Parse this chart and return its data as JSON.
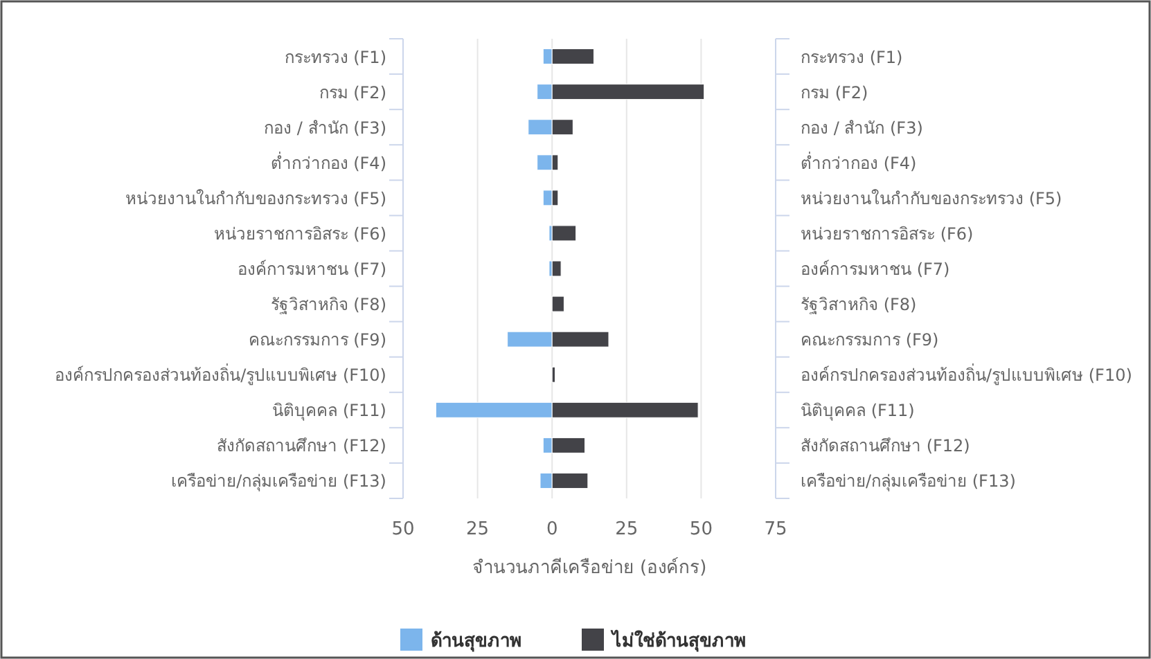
{
  "chart_data": {
    "type": "bar",
    "orientation": "horizontal",
    "stacked": true,
    "categories": [
      "กระทรวง (F1)",
      "กรม (F2)",
      "กอง / สำนัก (F3)",
      "ต่ำกว่ากอง (F4)",
      "หน่วยงานในกำกับของกระทรวง (F5)",
      "หน่วยราชการอิสระ (F6)",
      "องค์การมหาชน (F7)",
      "รัฐวิสาหกิจ (F8)",
      "คณะกรรมการ (F9)",
      "องค์กรปกครองส่วนท้องถิ่น/รูปแบบพิเศษ (F10)",
      "นิติบุคคล (F11)",
      "สังกัดสถานศึกษา (F12)",
      "เครือข่าย/กลุ่มเครือข่าย (F13)"
    ],
    "series": [
      {
        "name": "ด้านสุขภาพ",
        "color": "#7cb5ec",
        "values": [
          -3,
          -5,
          -8,
          -5,
          -3,
          -1,
          -1,
          0,
          -15,
          0,
          -39,
          -3,
          -4
        ]
      },
      {
        "name": "ไม่ใช่ด้านสุขภาพ",
        "color": "#434348",
        "values": [
          14,
          51,
          7,
          2,
          2,
          8,
          3,
          4,
          19,
          1,
          49,
          11,
          12
        ]
      }
    ],
    "xlim": [
      -50,
      75
    ],
    "xticks": [
      {
        "value": -50,
        "label": "50"
      },
      {
        "value": -25,
        "label": "25"
      },
      0,
      25,
      50,
      75
    ],
    "xlabel": "จำนวนภาคีเครือข่าย (องค์กร)",
    "grid": "x",
    "legend": "bottom"
  }
}
